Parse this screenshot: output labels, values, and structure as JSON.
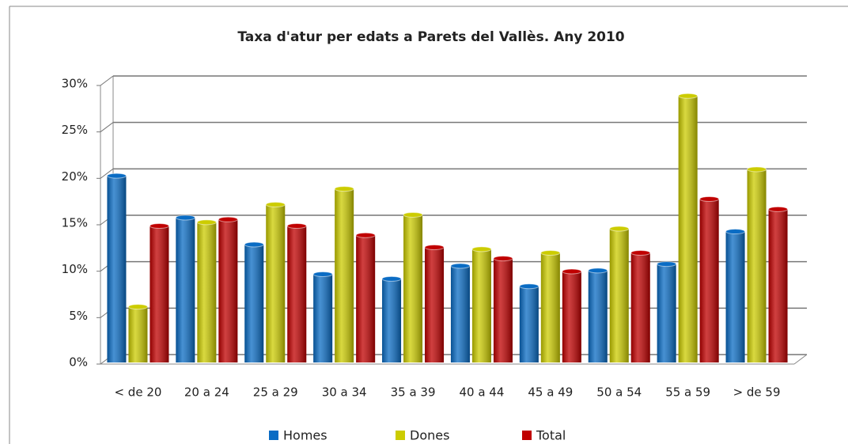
{
  "chart_data": {
    "type": "bar",
    "title": "Taxa d'atur per edats a Parets del Vallès. Any 2010",
    "categories": [
      "< de 20",
      "20 a 24",
      "25 a 29",
      "30 a 34",
      "35 a 39",
      "40 a 44",
      "45 a 49",
      "50 a 54",
      "55 a 59",
      "> de 59"
    ],
    "series": [
      {
        "name": "Homes",
        "color": "#0a6cc4",
        "values": [
          20.1,
          15.6,
          12.7,
          9.5,
          9.0,
          10.4,
          8.2,
          9.9,
          10.6,
          14.1
        ]
      },
      {
        "name": "Dones",
        "color": "#cccc00",
        "values": [
          6.0,
          15.1,
          17.0,
          18.7,
          15.9,
          12.2,
          11.8,
          14.4,
          28.7,
          20.8
        ]
      },
      {
        "name": "Total",
        "color": "#c00000",
        "values": [
          14.7,
          15.4,
          14.7,
          13.7,
          12.4,
          11.2,
          9.8,
          11.8,
          17.6,
          16.5
        ]
      }
    ],
    "ylim": [
      0,
      30
    ],
    "yticks": [
      {
        "value": 0,
        "label": "0%"
      },
      {
        "value": 5,
        "label": "5%"
      },
      {
        "value": 10,
        "label": "10%"
      },
      {
        "value": 15,
        "label": "15%"
      },
      {
        "value": 20,
        "label": "20%"
      },
      {
        "value": 25,
        "label": "25%"
      },
      {
        "value": 30,
        "label": "30%"
      }
    ],
    "grid": true
  }
}
